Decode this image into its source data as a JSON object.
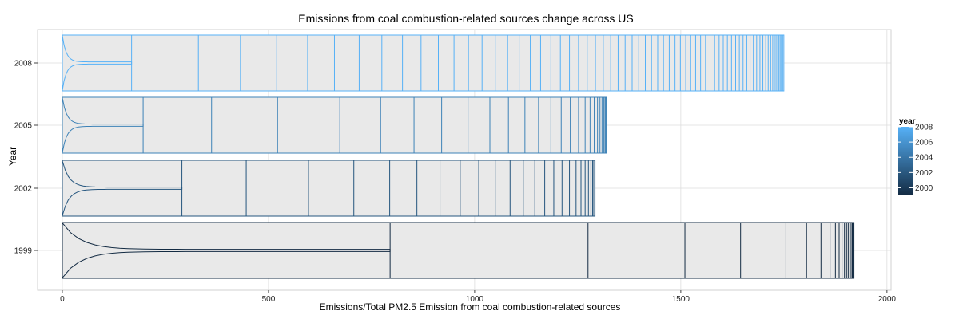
{
  "chart_data": {
    "type": "bar",
    "title": "Emissions from coal combustion-related sources change across US",
    "xlabel": "Emissions/Total PM2.5 Emission  from coal combustion-related sources",
    "ylabel": "Year",
    "xlim": [
      -60,
      2010
    ],
    "x_ticks": [
      0,
      500,
      1000,
      1500,
      2000
    ],
    "x_tick_labels": [
      "0",
      "500",
      "1000",
      "1500",
      "2000"
    ],
    "grid": true,
    "legend": {
      "title": "year",
      "placement": "right",
      "labels": [
        "2008",
        "2006",
        "2004",
        "2002",
        "2000"
      ],
      "range": [
        1999,
        2008
      ],
      "color_low": "#132B43",
      "color_high": "#56B1F7"
    },
    "categories": [
      "2008",
      "2005",
      "2002",
      "1999"
    ],
    "series": [
      {
        "year": 2008,
        "total": 1750,
        "color": "#56B1F7",
        "boundaries": [
          0,
          168,
          330,
          432,
          520,
          595,
          660,
          720,
          775,
          825,
          870,
          912,
          950,
          985,
          1018,
          1050,
          1080,
          1108,
          1135,
          1160,
          1185,
          1208,
          1230,
          1252,
          1273,
          1293,
          1312,
          1330,
          1348,
          1365,
          1382,
          1398,
          1414,
          1429,
          1444,
          1458,
          1472,
          1486,
          1499,
          1512,
          1524,
          1536,
          1548,
          1560,
          1571,
          1582,
          1593,
          1603,
          1613,
          1623,
          1633,
          1642,
          1651,
          1660,
          1668,
          1676,
          1684,
          1692,
          1699,
          1706,
          1712,
          1718,
          1723,
          1727,
          1731,
          1735,
          1738,
          1741,
          1744,
          1747,
          1750
        ],
        "violin_max": 168
      },
      {
        "year": 2005,
        "total": 1320,
        "color": "#3d82b7",
        "boundaries": [
          0,
          196,
          362,
          522,
          673,
          772,
          853,
          920,
          984,
          1037,
          1082,
          1122,
          1155,
          1185,
          1210,
          1232,
          1252,
          1268,
          1280,
          1290,
          1298,
          1304,
          1309,
          1313,
          1316,
          1318,
          1320
        ],
        "violin_max": 196
      },
      {
        "year": 2002,
        "total": 1292,
        "color": "#24557e",
        "boundaries": [
          0,
          290,
          446,
          597,
          707,
          794,
          860,
          916,
          965,
          1010,
          1050,
          1086,
          1118,
          1146,
          1170,
          1192,
          1212,
          1230,
          1246,
          1258,
          1268,
          1276,
          1282,
          1286,
          1289,
          1292
        ],
        "violin_max": 290
      },
      {
        "year": 1999,
        "total": 1920,
        "color": "#132B43",
        "boundaries": [
          0,
          795,
          1275,
          1510,
          1645,
          1755,
          1805,
          1840,
          1862,
          1875,
          1884,
          1891,
          1897,
          1902,
          1906,
          1910,
          1913,
          1916,
          1918,
          1920
        ],
        "violin_max": 795
      }
    ]
  }
}
